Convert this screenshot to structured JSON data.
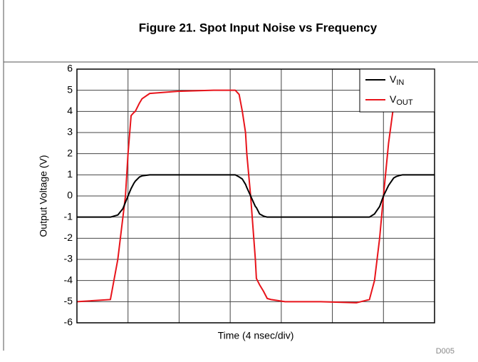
{
  "chart_data": {
    "type": "line",
    "title": "Figure 21. Spot Input Noise vs Frequency",
    "x_label": "Time (4 nsec/div)",
    "y_label": "Output Voltage (V)",
    "figure_id": "D005",
    "x": [
      0,
      2.62,
      3.2,
      3.6,
      3.8,
      4.0,
      4.24,
      4.46,
      4.57,
      4.9,
      5.1,
      5.7,
      7.9,
      10.7,
      12.1,
      12.4,
      12.7,
      12.95,
      13.2,
      13.3,
      13.6,
      13.97,
      14.05,
      14.3,
      14.6,
      14.9,
      15.2,
      16.3,
      19.1,
      21.9,
      22.9,
      23.3,
      23.7,
      24.0,
      24.4,
      24.8,
      25.0,
      25.2,
      25.5,
      28
    ],
    "series": [
      {
        "name": "VIN",
        "color": "#000000",
        "values": [
          -1,
          -1,
          -0.9,
          -0.6,
          -0.3,
          0,
          0.35,
          0.6,
          0.7,
          0.9,
          0.95,
          1,
          1,
          1,
          1,
          1,
          0.9,
          0.8,
          0.55,
          0.4,
          0,
          -0.5,
          -0.55,
          -0.85,
          -0.95,
          -1,
          -1,
          -1,
          -1,
          -1,
          -1,
          -0.85,
          -0.5,
          0,
          0.5,
          0.85,
          0.92,
          0.96,
          1,
          1
        ]
      },
      {
        "name": "VOUT",
        "color": "#e8141b",
        "values": [
          -5,
          -4.9,
          -3,
          -1,
          0,
          2,
          3.8,
          3.95,
          4,
          4.4,
          4.6,
          4.85,
          4.95,
          5,
          5,
          5,
          4.8,
          4.0,
          3,
          2,
          0,
          -3,
          -3.9,
          -4.2,
          -4.5,
          -4.85,
          -4.9,
          -5,
          -5,
          -5.05,
          -4.9,
          -4,
          -2,
          0,
          2.5,
          4.3,
          5,
          5,
          5,
          5
        ]
      }
    ],
    "xlim": [
      0,
      28
    ],
    "xticks": [
      0,
      4,
      8,
      12,
      16,
      20,
      24,
      28
    ],
    "ylim": [
      -6,
      6
    ],
    "yticks": [
      -6,
      -5,
      -4,
      -3,
      -2,
      -1,
      0,
      1,
      2,
      3,
      4,
      5,
      6
    ],
    "grid": true,
    "legend": "upper right"
  }
}
